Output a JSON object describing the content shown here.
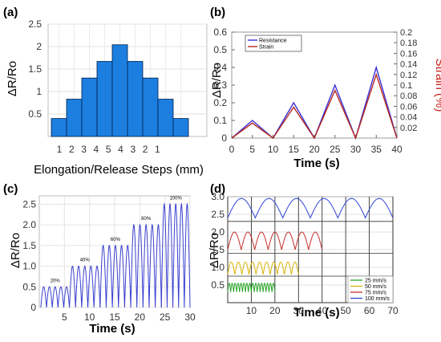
{
  "panels": {
    "a": "(a)",
    "b": "(b)",
    "c": "(c)",
    "d": "(d)"
  },
  "colors": {
    "bar_fill": "#1c7fe0",
    "bar_edge": "#00204d",
    "resistance": "#3a2fd6",
    "strain": "#b72a22",
    "strain_axis": "#c8201a",
    "c_line": "#3a3fcf",
    "d_blue": "#2f46d6",
    "d_red": "#c32d2a",
    "d_yellow": "#d8b40a",
    "d_green": "#2aa52a"
  },
  "chart_data": [
    {
      "panel": "a",
      "type": "bar",
      "categories": [
        "1",
        "2",
        "3",
        "4",
        "5",
        "4",
        "3",
        "2",
        "1"
      ],
      "values": [
        0.4,
        0.83,
        1.3,
        1.67,
        2.04,
        1.67,
        1.3,
        0.83,
        0.4
      ],
      "title": "",
      "xlabel": "Elongation/Release Steps (mm)",
      "ylabel": "ΔR/Ro",
      "ylim": [
        0,
        2.5
      ],
      "yticks": [
        "0.5",
        "1",
        "1.5",
        "2",
        "2.5"
      ],
      "grid": true
    },
    {
      "panel": "b",
      "type": "line",
      "xlabel": "Time (s)",
      "ylabel": "ΔR/Ro",
      "ylabel_right": "Strain (%)",
      "xlim": [
        0,
        40
      ],
      "ylim": [
        0,
        0.6
      ],
      "ylim_right": [
        0,
        0.2
      ],
      "xticks": [
        "0",
        "5",
        "10",
        "15",
        "20",
        "25",
        "30",
        "35",
        "40"
      ],
      "yticks": [
        "0",
        "0.1",
        "0.2",
        "0.3",
        "0.4",
        "0.5",
        "0.6"
      ],
      "yticks_right": [
        "0.02",
        "0.04",
        "0.06",
        "0.08",
        "0.1",
        "0.12",
        "0.14",
        "0.16",
        "0.18",
        "0.2"
      ],
      "legend": "top-left",
      "grid": false,
      "series": [
        {
          "name": "Resistance",
          "axis": "left",
          "x": [
            0,
            5,
            10,
            15,
            20,
            25,
            30,
            35,
            40
          ],
          "y": [
            0,
            0.1,
            0,
            0.2,
            0,
            0.3,
            0,
            0.4,
            0
          ]
        },
        {
          "name": "Strain",
          "axis": "left",
          "x": [
            0,
            5,
            10,
            15,
            20,
            25,
            30,
            35,
            40
          ],
          "y": [
            0,
            0.085,
            0,
            0.175,
            0,
            0.27,
            0,
            0.36,
            0
          ]
        }
      ]
    },
    {
      "panel": "c",
      "type": "line",
      "xlabel": "Time (s)",
      "ylabel": "ΔR/Ro",
      "xlim": [
        0,
        30
      ],
      "ylim": [
        0,
        2.7
      ],
      "xticks": [
        "5",
        "10",
        "15",
        "20",
        "25",
        "30"
      ],
      "yticks": [
        "0",
        "0.5",
        "1.0",
        "1.5",
        "2.0",
        "2.5"
      ],
      "grid": true,
      "segments": [
        {
          "label": "20%",
          "t_start": 0.3,
          "t_end": 6.0,
          "peak": 0.5,
          "cycles": 5
        },
        {
          "label": "40%",
          "t_start": 6.0,
          "t_end": 12.1,
          "peak": 1.0,
          "cycles": 5
        },
        {
          "label": "60%",
          "t_start": 12.1,
          "t_end": 18.2,
          "peak": 1.5,
          "cycles": 5
        },
        {
          "label": "80%",
          "t_start": 18.2,
          "t_end": 24.3,
          "peak": 2.0,
          "cycles": 5
        },
        {
          "label": "100%",
          "t_start": 24.3,
          "t_end": 30.0,
          "peak": 2.5,
          "cycles": 5
        }
      ]
    },
    {
      "panel": "d",
      "type": "line",
      "xlabel": "Time (s)",
      "ylabel": "ΔR/Ro",
      "xlim": [
        0,
        70
      ],
      "ylim": [
        0,
        3.0
      ],
      "xticks": [
        "10",
        "20",
        "30",
        "40",
        "50",
        "60",
        "70"
      ],
      "yticks": [
        "0.5",
        "1.0",
        "1.5",
        "2.0",
        "2.5",
        "3.0"
      ],
      "legend": "bottom-right",
      "grid": true,
      "series": [
        {
          "name": "25 mm/s",
          "color_key": "d_green",
          "t_end": 20,
          "base": 0.3,
          "peak": 0.55,
          "cycles": 16
        },
        {
          "name": "50 mm/s",
          "color_key": "d_yellow",
          "t_end": 30,
          "base": 0.8,
          "peak": 1.15,
          "cycles": 10
        },
        {
          "name": "75 mm/s",
          "color_key": "d_red",
          "t_end": 40,
          "base": 1.5,
          "peak": 2.0,
          "cycles": 7
        },
        {
          "name": "100 mm/s",
          "color_key": "d_blue",
          "t_end": 70,
          "base": 2.4,
          "peak": 2.95,
          "cycles": 6
        }
      ]
    }
  ]
}
